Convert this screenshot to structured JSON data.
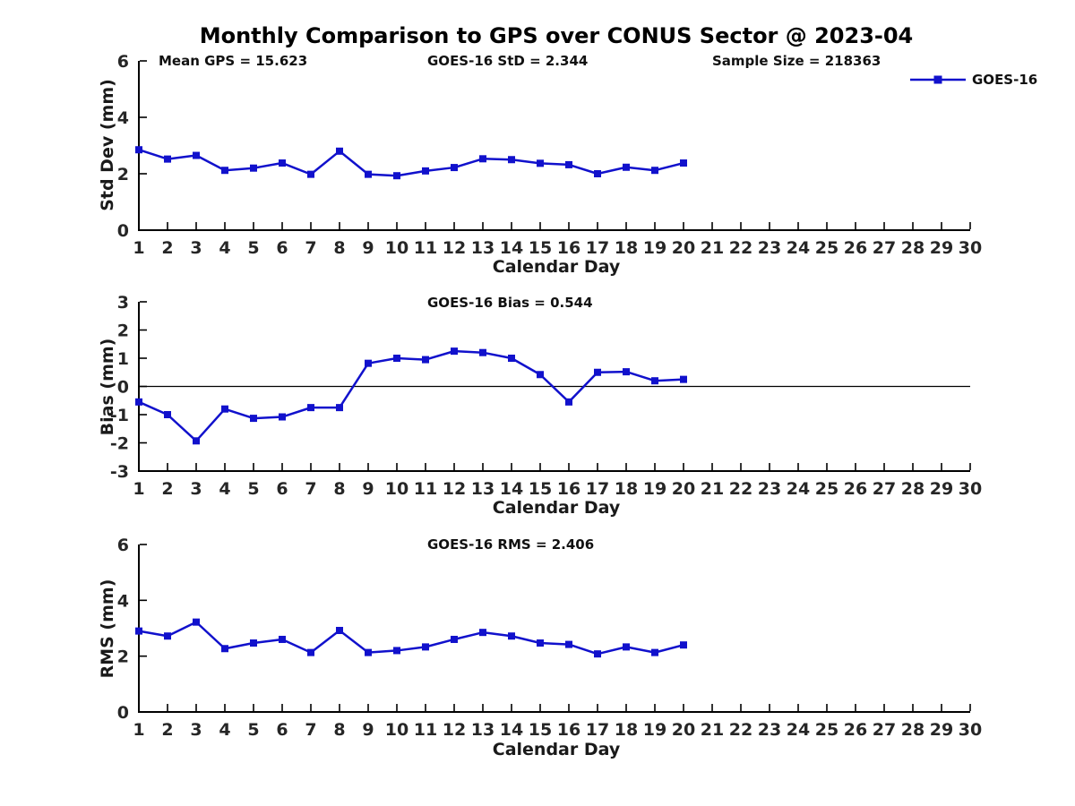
{
  "title": "Monthly Comparison to GPS over CONUS Sector @ 2023-04",
  "legend": {
    "label": "GOES-16"
  },
  "colors": {
    "line": "#1111cc",
    "axis": "#000000",
    "tick_text": "#262626"
  },
  "chart_data": [
    {
      "type": "line",
      "name": "std-dev",
      "ylabel": "Std Dev (mm)",
      "xlabel": "Calendar Day",
      "annotations": [
        "Mean GPS = 15.623",
        "GOES-16 StD = 2.344",
        "Sample Size = 218363"
      ],
      "legend": {
        "entries": [
          "GOES-16"
        ],
        "position": "top-right"
      },
      "grid": false,
      "xlim": [
        1,
        30
      ],
      "ylim": [
        0,
        6
      ],
      "xticks": [
        1,
        2,
        3,
        4,
        5,
        6,
        7,
        8,
        9,
        10,
        11,
        12,
        13,
        14,
        15,
        16,
        17,
        18,
        19,
        20,
        21,
        22,
        23,
        24,
        25,
        26,
        27,
        28,
        29,
        30
      ],
      "yticks": [
        0,
        2,
        4,
        6
      ],
      "x": [
        1,
        2,
        3,
        4,
        5,
        6,
        7,
        8,
        9,
        10,
        11,
        12,
        13,
        14,
        15,
        16,
        17,
        18,
        19,
        20
      ],
      "series": [
        {
          "name": "GOES-16",
          "values": [
            2.85,
            2.52,
            2.65,
            2.12,
            2.2,
            2.38,
            1.98,
            2.8,
            1.98,
            1.93,
            2.1,
            2.22,
            2.53,
            2.5,
            2.37,
            2.32,
            2.0,
            2.23,
            2.12,
            2.38
          ]
        }
      ]
    },
    {
      "type": "line",
      "name": "bias",
      "ylabel": "Bias (mm)",
      "xlabel": "Calendar Day",
      "annotations": [
        "GOES-16 Bias = 0.544"
      ],
      "grid": false,
      "zero_line": true,
      "xlim": [
        1,
        30
      ],
      "ylim": [
        -3,
        3
      ],
      "xticks": [
        1,
        2,
        3,
        4,
        5,
        6,
        7,
        8,
        9,
        10,
        11,
        12,
        13,
        14,
        15,
        16,
        17,
        18,
        19,
        20,
        21,
        22,
        23,
        24,
        25,
        26,
        27,
        28,
        29,
        30
      ],
      "yticks": [
        3,
        2,
        1,
        0,
        -1,
        -2,
        -3
      ],
      "x": [
        1,
        2,
        3,
        4,
        5,
        6,
        7,
        8,
        9,
        10,
        11,
        12,
        13,
        14,
        15,
        16,
        17,
        18,
        19,
        20
      ],
      "series": [
        {
          "name": "GOES-16",
          "values": [
            -0.55,
            -1.0,
            -1.93,
            -0.8,
            -1.13,
            -1.08,
            -0.75,
            -0.75,
            0.82,
            1.0,
            0.95,
            1.25,
            1.2,
            1.0,
            0.42,
            -0.55,
            0.5,
            0.52,
            0.2,
            0.25
          ]
        }
      ]
    },
    {
      "type": "line",
      "name": "rms",
      "ylabel": "RMS (mm)",
      "xlabel": "Calendar Day",
      "annotations": [
        "GOES-16 RMS = 2.406"
      ],
      "grid": false,
      "xlim": [
        1,
        30
      ],
      "ylim": [
        0,
        6
      ],
      "xticks": [
        1,
        2,
        3,
        4,
        5,
        6,
        7,
        8,
        9,
        10,
        11,
        12,
        13,
        14,
        15,
        16,
        17,
        18,
        19,
        20,
        21,
        22,
        23,
        24,
        25,
        26,
        27,
        28,
        29,
        30
      ],
      "yticks": [
        0,
        2,
        4,
        6
      ],
      "x": [
        1,
        2,
        3,
        4,
        5,
        6,
        7,
        8,
        9,
        10,
        11,
        12,
        13,
        14,
        15,
        16,
        17,
        18,
        19,
        20
      ],
      "series": [
        {
          "name": "GOES-16",
          "values": [
            2.9,
            2.72,
            3.22,
            2.27,
            2.47,
            2.6,
            2.13,
            2.92,
            2.13,
            2.2,
            2.33,
            2.6,
            2.85,
            2.72,
            2.47,
            2.42,
            2.08,
            2.33,
            2.13,
            2.4
          ]
        }
      ]
    }
  ]
}
